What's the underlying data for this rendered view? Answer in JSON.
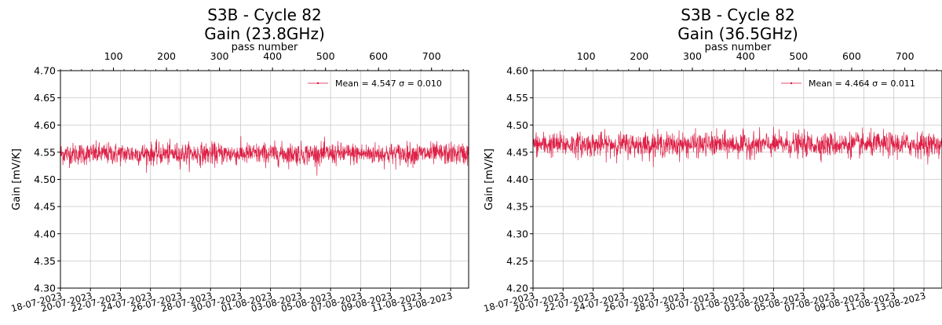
{
  "chart_data": [
    {
      "type": "line",
      "title": "S3B - Cycle 82",
      "subtitle": "Gain (23.8GHz)",
      "xlabel": "",
      "x2label": "pass number",
      "ylabel": "Gain [mV/K]",
      "x_dates": [
        "18-07-2023",
        "20-07-2023",
        "22-07-2023",
        "24-07-2023",
        "26-07-2023",
        "28-07-2023",
        "30-07-2023",
        "01-08-2023",
        "03-08-2023",
        "05-08-2023",
        "07-08-2023",
        "09-08-2023",
        "11-08-2023",
        "13-08-2023"
      ],
      "x2_ticks": [
        100,
        200,
        300,
        400,
        500,
        600,
        700
      ],
      "x2_range": [
        0,
        770
      ],
      "y_ticks": [
        "4.30",
        "4.35",
        "4.40",
        "4.45",
        "4.50",
        "4.55",
        "4.60",
        "4.65",
        "4.70"
      ],
      "ylim": [
        4.3,
        4.7
      ],
      "grid": true,
      "legend_position": "top-right",
      "series": [
        {
          "name": "Mean = 4.547   σ = 0.010",
          "mean": 4.547,
          "sigma": 0.01,
          "color": "#dc143c"
        }
      ]
    },
    {
      "type": "line",
      "title": "S3B - Cycle 82",
      "subtitle": "Gain (36.5GHz)",
      "xlabel": "",
      "x2label": "pass number",
      "ylabel": "Gain [mV/K]",
      "x_dates": [
        "18-07-2023",
        "20-07-2023",
        "22-07-2023",
        "24-07-2023",
        "26-07-2023",
        "28-07-2023",
        "30-07-2023",
        "01-08-2023",
        "03-08-2023",
        "05-08-2023",
        "07-08-2023",
        "09-08-2023",
        "11-08-2023",
        "13-08-2023"
      ],
      "x2_ticks": [
        100,
        200,
        300,
        400,
        500,
        600,
        700
      ],
      "x2_range": [
        0,
        770
      ],
      "y_ticks": [
        "4.20",
        "4.25",
        "4.30",
        "4.35",
        "4.40",
        "4.45",
        "4.50",
        "4.55",
        "4.60"
      ],
      "ylim": [
        4.2,
        4.6
      ],
      "grid": true,
      "legend_position": "top-right",
      "series": [
        {
          "name": "Mean = 4.464   σ = 0.011",
          "mean": 4.464,
          "sigma": 0.011,
          "color": "#dc143c"
        }
      ]
    }
  ]
}
